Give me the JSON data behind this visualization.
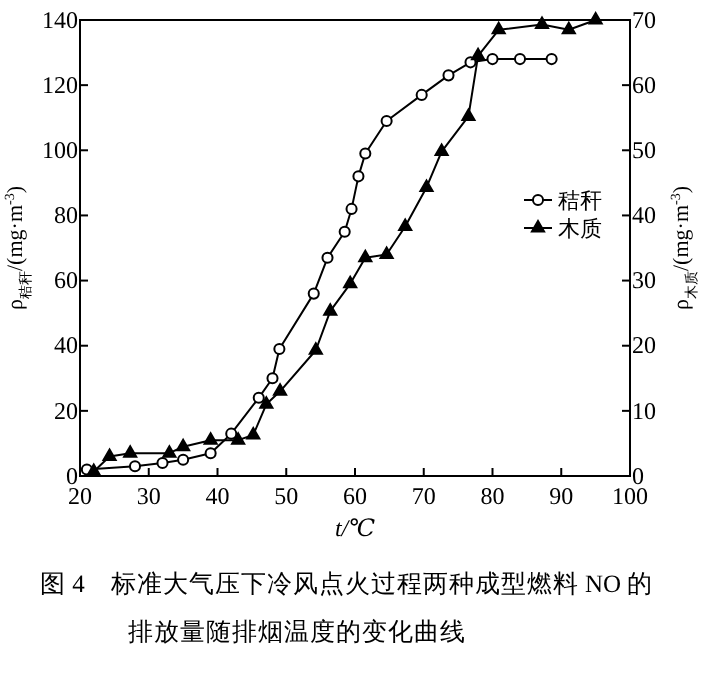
{
  "chart_data": {
    "type": "line",
    "title": "图 4　标准大气压下冷风点火过程两种成型燃料 NO 的排放量随排烟温度的变化曲线",
    "xlabel": "t/℃",
    "ylabel": "ρ$_{秸秆}$/(mg·m$^{-3}$)",
    "y2label": "ρ$_{木质}$/(mg·m$^{-3}$)",
    "xlim": [
      20,
      100
    ],
    "xticks": [
      20,
      30,
      40,
      50,
      60,
      70,
      80,
      90,
      100
    ],
    "ylim": [
      0,
      140
    ],
    "yticks": [
      0,
      20,
      40,
      60,
      80,
      100,
      120,
      140
    ],
    "y2lim": [
      0,
      70
    ],
    "y2ticks": [
      0,
      10,
      20,
      30,
      40,
      50,
      60,
      70
    ],
    "legend": "right",
    "grid": false,
    "series": [
      {
        "name": "秸秆",
        "color": "#000000",
        "marker": "circle",
        "x": [
          21,
          28,
          32,
          35,
          39,
          42,
          46,
          48,
          49,
          54,
          56,
          58.5,
          59.5,
          60.5,
          61.5,
          64.6,
          69.7,
          73.6,
          76.8,
          80,
          84,
          88.6
        ],
        "values": [
          2,
          3,
          4,
          5,
          7,
          13,
          24,
          30,
          39,
          56,
          67,
          75,
          82,
          92,
          99,
          109,
          117,
          123,
          127,
          128,
          128,
          128
        ]
      },
      {
        "name": "木质",
        "color": "#000000",
        "marker": "triangle",
        "axis": "y2",
        "x": [
          22,
          24.3,
          27.3,
          33,
          35,
          39,
          43,
          45.2,
          47.1,
          49.1,
          54.3,
          56.4,
          59.3,
          61.5,
          64.6,
          67.3,
          70.4,
          72.6,
          76.5,
          77.9,
          80.9,
          87.2,
          91.1,
          95
        ],
        "values": [
          0.7,
          3,
          3.5,
          3.5,
          4.5,
          5.5,
          5.5,
          6.3,
          11,
          13,
          19.3,
          25.3,
          29.5,
          33.5,
          34,
          38.3,
          44.3,
          49.8,
          55.2,
          64.5,
          68.5,
          69.3,
          68.5,
          70
        ]
      }
    ]
  }
}
